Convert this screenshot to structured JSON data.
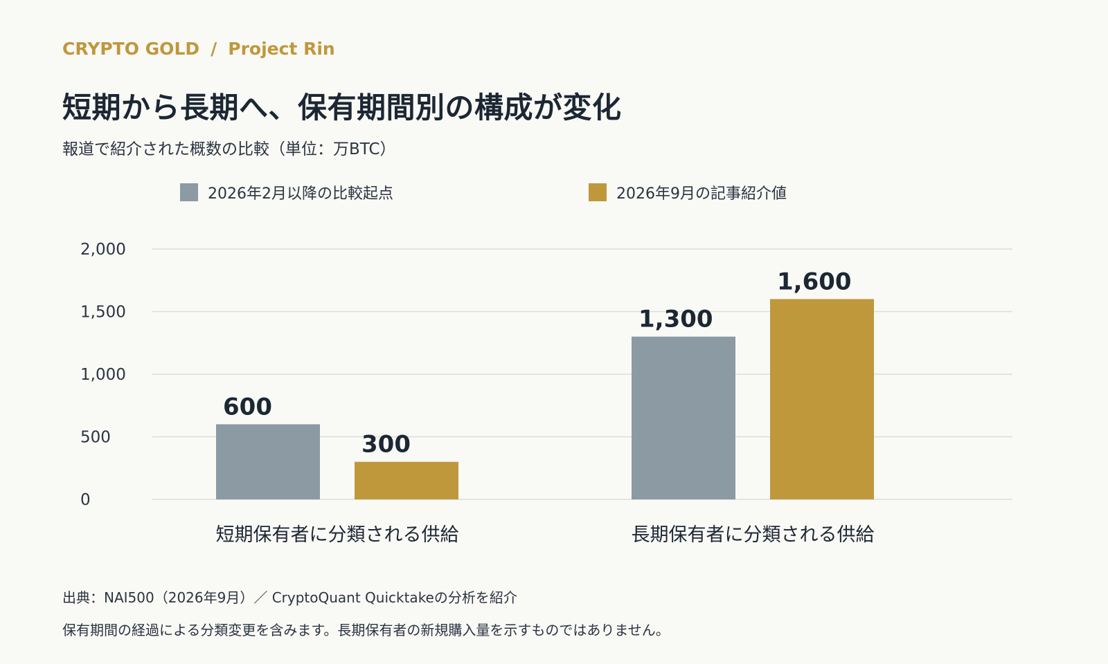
{
  "header": {
    "brand": "CRYPTO GOLD",
    "brand_separator": "/",
    "project": "Project Rin",
    "title": "短期から長期へ、保有期間別の構成が変化",
    "subtitle": "報道で紹介された概数の比較（単位：万BTC）"
  },
  "colors": {
    "accent": "#bf983c",
    "series_gray": "#8c9aa3",
    "series_gold": "#bf983c",
    "background": "#f9f9f6",
    "text": "#1c2733"
  },
  "chart_data": {
    "type": "bar",
    "categories": [
      "短期保有者に分類される供給",
      "長期保有者に分類される供給"
    ],
    "series": [
      {
        "name": "2026年2月以降の比較起点",
        "values": [
          600,
          1300
        ],
        "labels": [
          "600",
          "1,300"
        ]
      },
      {
        "name": "2026年9月の記事紹介値",
        "values": [
          300,
          1600
        ],
        "labels": [
          "300",
          "1,600"
        ]
      }
    ],
    "ylim": [
      0,
      2000
    ],
    "yticks": [
      {
        "value": 0,
        "label": "0"
      },
      {
        "value": 500,
        "label": "500"
      },
      {
        "value": 1000,
        "label": "1,000"
      },
      {
        "value": 1500,
        "label": "1,500"
      },
      {
        "value": 2000,
        "label": "2,000"
      }
    ],
    "grid": true,
    "legend_position": "top"
  },
  "footer": {
    "source": "出典：NAI500（2026年9月）／ CryptoQuant Quicktakeの分析を紹介",
    "note": "保有期間の経過による分類変更を含みます。長期保有者の新規購入量を示すものではありません。"
  }
}
